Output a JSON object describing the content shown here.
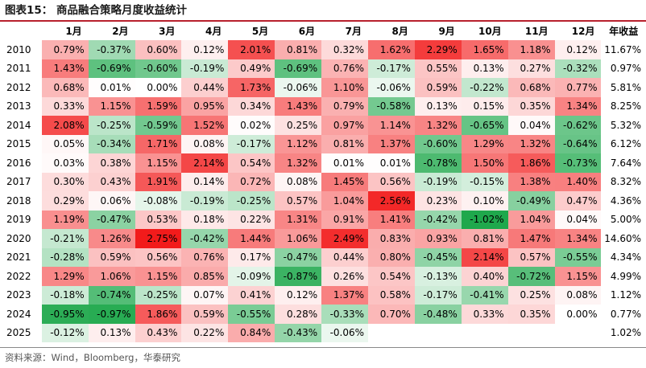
{
  "title": "图表15：   商品融合策略月度收益统计",
  "source": "资料来源：Wind，Bloomberg，华泰研究",
  "colors": {
    "title_rule": "#b8202d",
    "positive_max": "#f21b1b",
    "negative_max": "#1fa84c",
    "neutral": "#ffffff"
  },
  "chart_data": {
    "type": "heatmap",
    "title": "商品融合策略月度收益统计",
    "year_header": "",
    "columns": [
      "1月",
      "2月",
      "3月",
      "4月",
      "5月",
      "6月",
      "7月",
      "8月",
      "9月",
      "10月",
      "11月",
      "12月"
    ],
    "annual_header": "年收益",
    "unit": "%",
    "rows": [
      {
        "year": "2010",
        "values": [
          0.79,
          -0.37,
          0.6,
          0.12,
          2.01,
          0.81,
          0.32,
          1.62,
          2.29,
          1.65,
          1.18,
          0.12
        ],
        "annual": 11.67
      },
      {
        "year": "2011",
        "values": [
          1.43,
          -0.69,
          -0.6,
          -0.19,
          0.49,
          -0.69,
          0.76,
          -0.17,
          0.55,
          0.13,
          0.27,
          -0.32
        ],
        "annual": 0.97
      },
      {
        "year": "2012",
        "values": [
          0.68,
          0.01,
          0.0,
          0.44,
          1.73,
          -0.06,
          1.1,
          -0.06,
          0.59,
          -0.22,
          0.68,
          0.77
        ],
        "annual": 5.81
      },
      {
        "year": "2013",
        "values": [
          0.33,
          1.15,
          1.59,
          0.95,
          0.34,
          1.43,
          0.79,
          -0.58,
          0.13,
          0.15,
          0.35,
          1.34
        ],
        "annual": 8.25
      },
      {
        "year": "2014",
        "values": [
          2.08,
          -0.25,
          -0.59,
          1.52,
          0.02,
          0.25,
          0.97,
          1.14,
          1.32,
          -0.65,
          0.04,
          -0.62
        ],
        "annual": 5.32
      },
      {
        "year": "2015",
        "values": [
          0.05,
          -0.34,
          1.71,
          0.08,
          -0.17,
          1.12,
          0.81,
          1.37,
          -0.6,
          1.29,
          1.32,
          -0.64
        ],
        "annual": 6.12
      },
      {
        "year": "2016",
        "values": [
          0.03,
          0.38,
          1.15,
          2.14,
          0.54,
          1.32,
          0.01,
          0.01,
          -0.78,
          1.5,
          1.86,
          -0.73
        ],
        "annual": 7.64
      },
      {
        "year": "2017",
        "values": [
          0.3,
          0.43,
          1.91,
          0.14,
          0.72,
          0.08,
          1.45,
          0.56,
          -0.19,
          -0.15,
          1.38,
          1.4
        ],
        "annual": 8.32
      },
      {
        "year": "2018",
        "values": [
          0.29,
          0.06,
          -0.08,
          -0.19,
          -0.25,
          0.57,
          1.04,
          2.56,
          0.23,
          0.1,
          -0.49,
          0.47
        ],
        "annual": 4.36
      },
      {
        "year": "2019",
        "values": [
          1.19,
          -0.47,
          0.53,
          0.18,
          0.22,
          1.31,
          0.91,
          1.41,
          -0.42,
          -1.02,
          1.04,
          0.04
        ],
        "annual": 5.0
      },
      {
        "year": "2020",
        "values": [
          -0.21,
          1.26,
          2.75,
          -0.42,
          1.44,
          1.06,
          2.49,
          0.83,
          0.93,
          0.81,
          1.47,
          1.34
        ],
        "annual": 14.6
      },
      {
        "year": "2021",
        "values": [
          -0.28,
          0.59,
          0.56,
          0.76,
          0.17,
          -0.47,
          0.44,
          0.8,
          -0.45,
          2.14,
          0.57,
          -0.55
        ],
        "annual": 4.34
      },
      {
        "year": "2022",
        "values": [
          1.29,
          1.06,
          1.15,
          0.85,
          -0.09,
          -0.87,
          0.26,
          0.54,
          -0.13,
          0.4,
          -0.72,
          1.15
        ],
        "annual": 4.99
      },
      {
        "year": "2023",
        "values": [
          -0.18,
          -0.74,
          -0.25,
          0.07,
          0.41,
          0.12,
          1.37,
          0.58,
          -0.17,
          -0.41,
          0.25,
          0.08
        ],
        "annual": 1.12
      },
      {
        "year": "2024",
        "values": [
          -0.95,
          -0.97,
          1.86,
          0.59,
          -0.55,
          0.28,
          -0.33,
          0.7,
          -0.48,
          0.33,
          0.35,
          0.0
        ],
        "annual": 0.77
      },
      {
        "year": "2025",
        "values": [
          -0.12,
          0.13,
          0.43,
          0.22,
          0.84,
          -0.43,
          -0.06,
          null,
          null,
          null,
          null,
          null
        ],
        "annual": 1.02
      }
    ]
  }
}
